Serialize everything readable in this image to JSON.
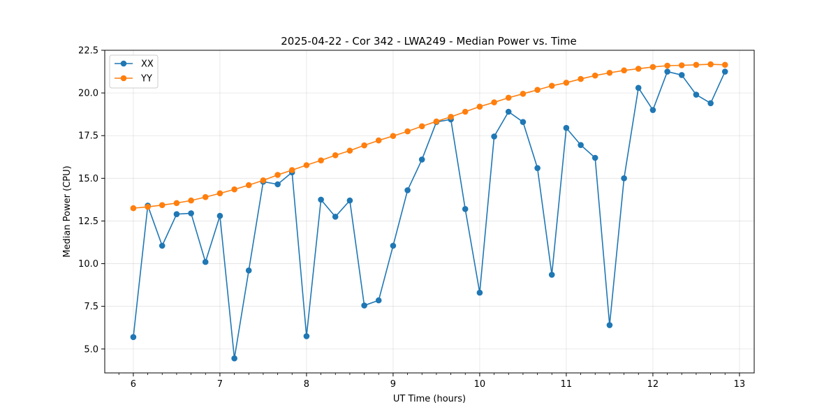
{
  "chart_data": {
    "type": "line",
    "title": "2025-04-22 - Cor 342 - LWA249 - Median Power vs. Time",
    "xlabel": "UT Time (hours)",
    "ylabel": "Median Power (CPU)",
    "xlim": [
      5.67,
      13.17
    ],
    "ylim": [
      3.6,
      22.5
    ],
    "xticks": [
      6,
      7,
      8,
      9,
      10,
      11,
      12,
      13
    ],
    "yticks": [
      5.0,
      7.5,
      10.0,
      12.5,
      15.0,
      17.5,
      20.0,
      22.5
    ],
    "grid": true,
    "legend": "top-left",
    "x": [
      6.0,
      6.167,
      6.333,
      6.5,
      6.667,
      6.833,
      7.0,
      7.167,
      7.333,
      7.5,
      7.667,
      7.833,
      8.0,
      8.167,
      8.333,
      8.5,
      8.667,
      8.833,
      9.0,
      9.167,
      9.333,
      9.5,
      9.667,
      9.833,
      10.0,
      10.167,
      10.333,
      10.5,
      10.667,
      10.833,
      11.0,
      11.167,
      11.333,
      11.5,
      11.667,
      11.833,
      12.0,
      12.167,
      12.333,
      12.5,
      12.667,
      12.833
    ],
    "series": [
      {
        "name": "XX",
        "color": "#1f77b4",
        "values": [
          5.7,
          13.4,
          11.05,
          12.9,
          12.95,
          10.1,
          12.8,
          4.45,
          9.6,
          14.8,
          14.65,
          15.35,
          5.75,
          13.75,
          12.75,
          13.7,
          7.55,
          7.85,
          11.05,
          14.3,
          16.1,
          18.3,
          18.45,
          13.2,
          8.3,
          17.45,
          18.9,
          18.3,
          15.6,
          9.35,
          17.95,
          16.95,
          16.2,
          6.4,
          15.0,
          20.3,
          19.0,
          21.25,
          21.05,
          19.9,
          19.4,
          21.25
        ]
      },
      {
        "name": "YY",
        "color": "#ff7f0e",
        "values": [
          13.25,
          13.33,
          13.43,
          13.55,
          13.7,
          13.9,
          14.12,
          14.35,
          14.6,
          14.88,
          15.2,
          15.48,
          15.77,
          16.05,
          16.35,
          16.62,
          16.93,
          17.22,
          17.48,
          17.75,
          18.05,
          18.33,
          18.6,
          18.9,
          19.2,
          19.45,
          19.72,
          19.95,
          20.18,
          20.42,
          20.6,
          20.82,
          21.02,
          21.18,
          21.32,
          21.42,
          21.52,
          21.6,
          21.62,
          21.65,
          21.68,
          21.65
        ]
      }
    ]
  }
}
